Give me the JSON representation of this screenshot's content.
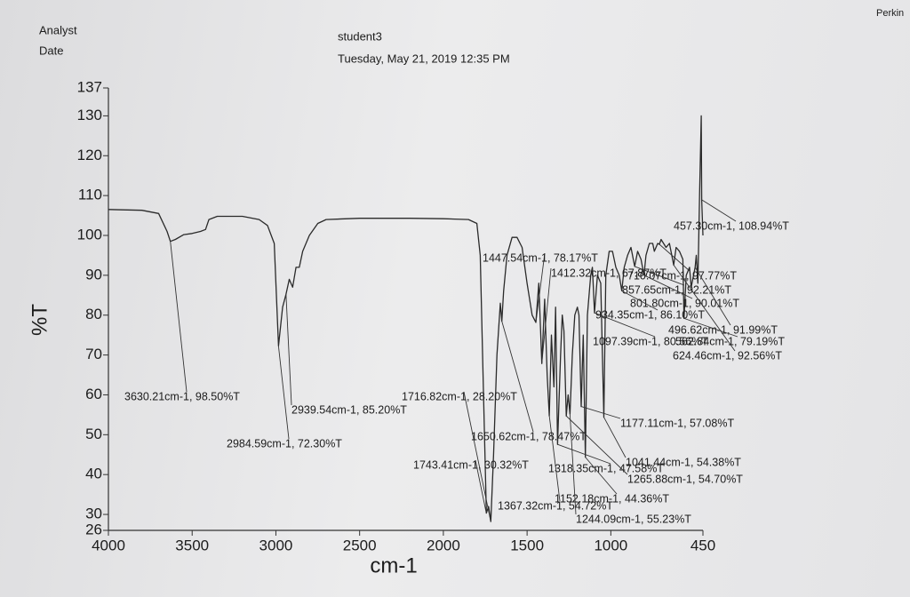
{
  "header": {
    "analyst": "Analyst",
    "date": "Date",
    "sample": "student3",
    "timestamp": "Tuesday, May 21, 2019 12:35 PM",
    "corner": "Perkin"
  },
  "chart_data": {
    "type": "line",
    "color": "#2a2a2a",
    "xlabel": "cm-1",
    "ylabel": "%T",
    "xlim": [
      4000,
      450
    ],
    "ylim": [
      26,
      137
    ],
    "xticks": [
      4000,
      3500,
      3000,
      2500,
      2000,
      1500,
      1000,
      450
    ],
    "yticks": [
      26,
      30,
      40,
      50,
      60,
      70,
      80,
      90,
      100,
      110,
      120,
      130,
      137
    ],
    "x": [
      4000,
      3800,
      3700,
      3650,
      3630.21,
      3600,
      3550,
      3500,
      3450,
      3420,
      3400,
      3350,
      3200,
      3100,
      3050,
      3010,
      2984.59,
      2960,
      2939.54,
      2920,
      2900,
      2880,
      2860,
      2840,
      2800,
      2750,
      2700,
      2500,
      2200,
      2000,
      1850,
      1800,
      1780,
      1760,
      1743.41,
      1730,
      1716.82,
      1700,
      1680,
      1660,
      1650.62,
      1640,
      1620,
      1590,
      1560,
      1530,
      1500,
      1470,
      1447.54,
      1430,
      1412.32,
      1395,
      1380,
      1367.32,
      1355,
      1340,
      1330,
      1318.35,
      1300,
      1290,
      1280,
      1265.88,
      1255,
      1244.09,
      1230,
      1215,
      1200,
      1190,
      1177.11,
      1165,
      1152.18,
      1140,
      1120,
      1110,
      1097.39,
      1080,
      1060,
      1041.44,
      1030,
      1010,
      990,
      970,
      950,
      934.35,
      920,
      900,
      880,
      857.65,
      840,
      820,
      801.8,
      790,
      770,
      750,
      740,
      720,
      710.07,
      700,
      670,
      650,
      624.46,
      610,
      590,
      570,
      562.84,
      550,
      530,
      520,
      496.62,
      490,
      480,
      470,
      460,
      457.3,
      450
    ],
    "values": [
      106.5,
      106.3,
      105.5,
      101,
      98.5,
      99,
      100.2,
      100.5,
      101,
      101.5,
      104,
      104.8,
      104.8,
      104,
      102.5,
      98,
      72.3,
      82,
      85.2,
      89,
      87,
      92,
      92,
      96,
      100,
      103,
      104,
      104.3,
      104.3,
      104.2,
      104,
      103,
      95,
      60,
      30.32,
      32,
      28.2,
      45,
      70,
      83,
      78.47,
      86,
      95,
      99.5,
      99.5,
      97,
      88,
      80,
      78.17,
      88,
      67.87,
      84,
      65,
      54.72,
      75,
      62,
      82,
      47.58,
      70,
      80,
      76,
      54.7,
      60,
      55.23,
      70,
      80,
      82,
      80,
      57.08,
      75,
      44.36,
      80,
      90,
      92,
      80.56,
      90,
      88,
      54.38,
      90,
      96,
      96,
      92,
      90,
      86.1,
      92,
      95,
      97,
      92.21,
      96,
      94,
      90.01,
      95,
      98,
      98,
      96,
      98,
      97.77,
      99,
      97,
      98,
      92.56,
      97,
      96,
      94,
      79.19,
      90,
      92,
      87,
      91.99,
      95,
      88,
      110,
      130,
      108.94,
      100
    ],
    "peaks": [
      {
        "x": 3630.21,
        "y": 98.5,
        "label": "3630.21cm-1, 98.50%T"
      },
      {
        "x": 2984.59,
        "y": 72.3,
        "label": "2984.59cm-1, 72.30%T"
      },
      {
        "x": 2939.54,
        "y": 85.2,
        "label": "2939.54cm-1, 85.20%T"
      },
      {
        "x": 1716.82,
        "y": 28.2,
        "label": "1716.82cm-1, 28.20%T"
      },
      {
        "x": 1650.62,
        "y": 78.47,
        "label": "1650.62cm-1, 78.47%T"
      },
      {
        "x": 1743.41,
        "y": 30.32,
        "label": "1743.41cm-1, 30.32%T"
      },
      {
        "x": 1318.35,
        "y": 47.58,
        "label": "1318.35cm-1, 47.58%T"
      },
      {
        "x": 1367.32,
        "y": 54.72,
        "label": "1367.32cm-1, 54.72%T"
      },
      {
        "x": 1152.18,
        "y": 44.36,
        "label": "1152.18cm-1, 44.36%T"
      },
      {
        "x": 1244.09,
        "y": 55.23,
        "label": "1244.09cm-1, 55.23%T"
      },
      {
        "x": 1265.88,
        "y": 54.7,
        "label": "1265.88cm-1, 54.70%T"
      },
      {
        "x": 1041.44,
        "y": 54.38,
        "label": "1041.44cm-1, 54.38%T"
      },
      {
        "x": 1177.11,
        "y": 57.08,
        "label": "1177.11cm-1, 57.08%T"
      },
      {
        "x": 1447.54,
        "y": 78.17,
        "label": "1447.54cm-1, 78.17%T"
      },
      {
        "x": 1412.32,
        "y": 67.87,
        "label": "1412.32cm-1, 67.87%T"
      },
      {
        "x": 710.07,
        "y": 97.77,
        "label": "710.07cm-1, 97.77%T"
      },
      {
        "x": 857.65,
        "y": 92.21,
        "label": "857.65cm-1, 92.21%T"
      },
      {
        "x": 801.8,
        "y": 90.01,
        "label": "801.80cm-1, 90.01%T"
      },
      {
        "x": 934.35,
        "y": 86.1,
        "label": "934.35cm-1, 86.10%T"
      },
      {
        "x": 496.62,
        "y": 91.99,
        "label": "496.62cm-1, 91.99%T"
      },
      {
        "x": 1097.39,
        "y": 80.56,
        "label": "1097.39cm-1, 80.56%T"
      },
      {
        "x": 562.84,
        "y": 79.19,
        "label": "562.84cm-1, 79.19%T"
      },
      {
        "x": 624.46,
        "y": 92.56,
        "label": "624.46cm-1, 92.56%T"
      },
      {
        "x": 457.3,
        "y": 108.94,
        "label": "457.30cm-1, 108.94%T"
      }
    ]
  }
}
